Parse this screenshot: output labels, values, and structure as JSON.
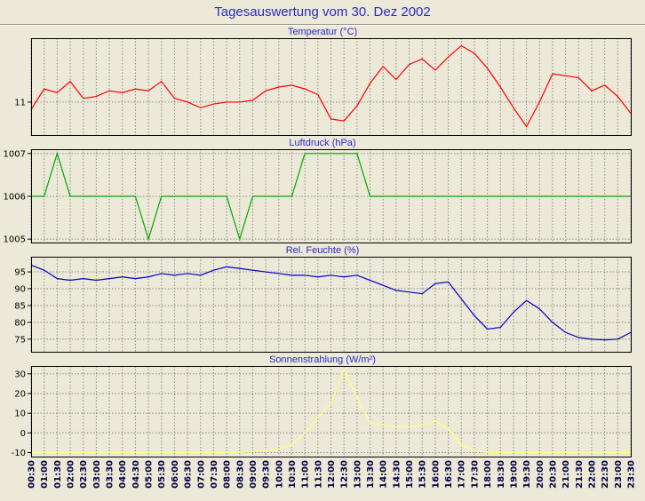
{
  "header": {
    "title": "Tagesauswertung vom 30. Dez 2002"
  },
  "colors": {
    "background": "#ece9d8",
    "title_text": "#2929c8",
    "grid": "#8a8a8a",
    "temperature_line": "#ff0000",
    "pressure_line": "#00a800",
    "humidity_line": "#0000c8",
    "radiation_line": "#ffff80"
  },
  "chart_data": [
    {
      "type": "line",
      "title": "Temperatur (°C)",
      "color": "#ff0000",
      "ylim": [
        10.1,
        12.7
      ],
      "yticks": [
        11
      ],
      "grid": "dashed vertical per 30min + dashed horizontal per tick",
      "values": [
        10.8,
        11.35,
        11.25,
        11.55,
        11.1,
        11.15,
        11.3,
        11.25,
        11.35,
        11.3,
        11.55,
        11.1,
        11.0,
        10.85,
        10.95,
        11.0,
        11.0,
        11.05,
        11.3,
        11.4,
        11.45,
        11.35,
        11.2,
        10.55,
        10.5,
        10.9,
        11.5,
        11.95,
        11.6,
        12.0,
        12.15,
        11.85,
        12.2,
        12.5,
        12.3,
        11.9,
        11.4,
        10.85,
        10.35,
        11.0,
        11.75,
        11.7,
        11.65,
        11.3,
        11.45,
        11.15,
        10.7
      ]
    },
    {
      "type": "line",
      "title": "Luftdruck (hPa)",
      "color": "#00a800",
      "ylim": [
        1004.9,
        1007.1
      ],
      "yticks": [
        1005,
        1006,
        1007
      ],
      "grid": "dashed vertical per 30min + dashed horizontal per tick",
      "values": [
        1006,
        1006,
        1007,
        1006,
        1006,
        1006,
        1006,
        1006,
        1006,
        1005,
        1006,
        1006,
        1006,
        1006,
        1006,
        1006,
        1005,
        1006,
        1006,
        1006,
        1006,
        1007,
        1007,
        1007,
        1007,
        1007,
        1006,
        1006,
        1006,
        1006,
        1006,
        1006,
        1006,
        1006,
        1006,
        1006,
        1006,
        1006,
        1006,
        1006,
        1006,
        1006,
        1006,
        1006,
        1006,
        1006,
        1006
      ]
    },
    {
      "type": "line",
      "title": "Rel. Feuchte (%)",
      "color": "#0000c8",
      "ylim": [
        71,
        99.5
      ],
      "yticks": [
        75,
        80,
        85,
        90,
        95
      ],
      "grid": "dashed vertical per 30min + dashed horizontal per tick",
      "values": [
        97,
        95.5,
        93,
        92.5,
        93,
        92.5,
        93,
        93.5,
        93,
        93.5,
        94.5,
        94,
        94.5,
        94,
        95.5,
        96.5,
        96,
        95.5,
        95,
        94.5,
        94,
        94,
        93.5,
        94,
        93.5,
        94,
        92.5,
        91,
        89.5,
        89,
        88.5,
        91.5,
        92,
        87,
        82,
        78,
        78.5,
        83,
        86.5,
        84,
        80,
        77,
        75.5,
        75,
        74.8,
        75,
        77
      ]
    },
    {
      "type": "line",
      "title": "Sonnenstrahlung (W/m²)",
      "color": "#ffff80",
      "ylim": [
        -12.5,
        34
      ],
      "yticks": [
        -10,
        0,
        10,
        20,
        30
      ],
      "grid": "dashed vertical per 30min + dashed horizontal per tick",
      "values": [
        -10,
        -10,
        -10,
        -10,
        -10,
        -10,
        -10,
        -10,
        -10,
        -10,
        -10,
        -10,
        -10,
        -10,
        -10,
        -10,
        -10,
        -9.5,
        -9,
        -8,
        -6,
        0,
        8,
        15,
        32,
        18,
        5,
        4,
        3,
        3,
        4,
        6,
        2,
        -6,
        -9,
        -10,
        -10,
        -10,
        -10,
        -10,
        -10,
        -10,
        -10,
        -10,
        -10,
        -10,
        -10
      ],
      "categories": [
        "00:30",
        "01:00",
        "01:30",
        "02:00",
        "02:30",
        "03:00",
        "03:30",
        "04:00",
        "04:30",
        "05:00",
        "05:30",
        "06:00",
        "06:30",
        "07:00",
        "07:30",
        "08:00",
        "08:30",
        "09:00",
        "09:30",
        "10:00",
        "10:30",
        "11:00",
        "11:30",
        "12:00",
        "12:30",
        "13:00",
        "13:30",
        "14:00",
        "14:30",
        "15:00",
        "15:30",
        "16:00",
        "16:30",
        "17:00",
        "17:30",
        "18:00",
        "18:30",
        "19:00",
        "19:30",
        "20:00",
        "20:30",
        "21:00",
        "21:30",
        "22:00",
        "22:30",
        "23:00",
        "23:30"
      ]
    }
  ]
}
